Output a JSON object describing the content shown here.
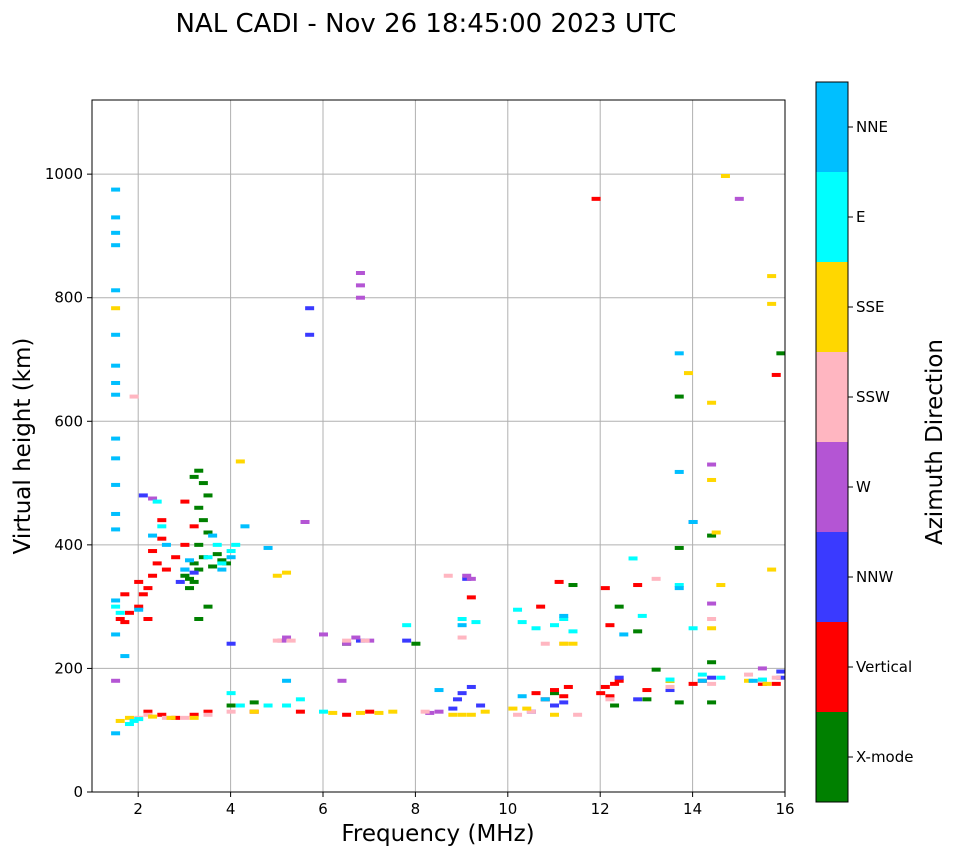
{
  "chart_data": {
    "type": "scatter",
    "title": "NAL CADI - Nov 26 18:45:00 2023 UTC",
    "xlabel": "Frequency (MHz)",
    "ylabel": "Virtual height (km)",
    "xlim": [
      1,
      16
    ],
    "ylim": [
      0,
      1120
    ],
    "xticks": [
      2,
      4,
      6,
      8,
      10,
      12,
      14,
      16
    ],
    "yticks": [
      0,
      200,
      400,
      600,
      800,
      1000
    ],
    "grid": true,
    "colorbar": {
      "label": "Azimuth Direction",
      "categories": [
        {
          "name": "X-mode",
          "color": "#008000"
        },
        {
          "name": "Vertical",
          "color": "#ff0000"
        },
        {
          "name": "NNW",
          "color": "#3a3aff"
        },
        {
          "name": "W",
          "color": "#b455d4"
        },
        {
          "name": "SSW",
          "color": "#ffb6c1"
        },
        {
          "name": "SSE",
          "color": "#ffd700"
        },
        {
          "name": "E",
          "color": "#00ffff"
        },
        {
          "name": "NNE",
          "color": "#00bfff"
        }
      ]
    },
    "series": [
      {
        "name": "X-mode",
        "points": [
          [
            3.0,
            350
          ],
          [
            3.1,
            345
          ],
          [
            3.2,
            340
          ],
          [
            3.1,
            330
          ],
          [
            3.3,
            360
          ],
          [
            3.2,
            370
          ],
          [
            3.4,
            380
          ],
          [
            3.3,
            400
          ],
          [
            3.5,
            420
          ],
          [
            3.4,
            440
          ],
          [
            3.3,
            460
          ],
          [
            3.5,
            480
          ],
          [
            3.4,
            500
          ],
          [
            3.3,
            520
          ],
          [
            3.6,
            365
          ],
          [
            3.8,
            375
          ],
          [
            3.7,
            385
          ],
          [
            3.9,
            370
          ],
          [
            3.3,
            280
          ],
          [
            3.5,
            300
          ],
          [
            3.2,
            510
          ],
          [
            6.5,
            240
          ],
          [
            8.0,
            240
          ],
          [
            11.0,
            160
          ],
          [
            11.4,
            335
          ],
          [
            12.3,
            140
          ],
          [
            12.4,
            300
          ],
          [
            12.8,
            260
          ],
          [
            13.0,
            150
          ],
          [
            13.2,
            198
          ],
          [
            13.5,
            180
          ],
          [
            13.7,
            145
          ],
          [
            13.7,
            640
          ],
          [
            13.7,
            395
          ],
          [
            14.4,
            415
          ],
          [
            14.4,
            210
          ],
          [
            14.4,
            145
          ],
          [
            15.5,
            180
          ],
          [
            15.9,
            195
          ],
          [
            15.9,
            710
          ],
          [
            4.0,
            140
          ],
          [
            4.5,
            145
          ]
        ]
      },
      {
        "name": "Vertical",
        "points": [
          [
            1.6,
            280
          ],
          [
            1.7,
            275
          ],
          [
            1.8,
            290
          ],
          [
            1.7,
            320
          ],
          [
            2.0,
            300
          ],
          [
            2.1,
            320
          ],
          [
            2.2,
            330
          ],
          [
            2.3,
            350
          ],
          [
            2.4,
            370
          ],
          [
            2.3,
            390
          ],
          [
            2.5,
            410
          ],
          [
            2.2,
            280
          ],
          [
            2.5,
            440
          ],
          [
            2.0,
            340
          ],
          [
            2.6,
            360
          ],
          [
            3.0,
            400
          ],
          [
            2.8,
            380
          ],
          [
            3.0,
            470
          ],
          [
            3.2,
            430
          ],
          [
            2.2,
            130
          ],
          [
            2.5,
            125
          ],
          [
            2.8,
            120
          ],
          [
            3.2,
            125
          ],
          [
            3.5,
            130
          ],
          [
            4.5,
            130
          ],
          [
            5.5,
            130
          ],
          [
            6.5,
            125
          ],
          [
            7.0,
            130
          ],
          [
            9.2,
            315
          ],
          [
            10.6,
            160
          ],
          [
            10.7,
            300
          ],
          [
            10.8,
            150
          ],
          [
            11.0,
            165
          ],
          [
            11.1,
            340
          ],
          [
            11.2,
            155
          ],
          [
            11.3,
            170
          ],
          [
            11.9,
            960
          ],
          [
            12.0,
            160
          ],
          [
            12.1,
            170
          ],
          [
            12.2,
            155
          ],
          [
            12.3,
            175
          ],
          [
            12.4,
            180
          ],
          [
            12.8,
            335
          ],
          [
            13.0,
            165
          ],
          [
            14.0,
            175
          ],
          [
            14.2,
            180
          ],
          [
            15.5,
            175
          ],
          [
            15.8,
            175
          ],
          [
            15.8,
            675
          ],
          [
            12.2,
            270
          ],
          [
            12.1,
            330
          ]
        ]
      },
      {
        "name": "NNW",
        "points": [
          [
            2.9,
            340
          ],
          [
            3.0,
            360
          ],
          [
            3.2,
            355
          ],
          [
            4.0,
            240
          ],
          [
            5.7,
            740
          ],
          [
            5.7,
            783
          ],
          [
            6.8,
            245
          ],
          [
            8.8,
            135
          ],
          [
            8.9,
            150
          ],
          [
            9.0,
            160
          ],
          [
            9.2,
            170
          ],
          [
            9.4,
            140
          ],
          [
            9.1,
            345
          ],
          [
            10.5,
            130
          ],
          [
            11.0,
            140
          ],
          [
            11.2,
            145
          ],
          [
            12.4,
            185
          ],
          [
            13.5,
            165
          ],
          [
            14.0,
            437
          ],
          [
            14.4,
            185
          ],
          [
            15.9,
            185
          ],
          [
            15.9,
            195
          ],
          [
            12.8,
            150
          ],
          [
            7.8,
            245
          ],
          [
            2.1,
            480
          ]
        ]
      },
      {
        "name": "W",
        "points": [
          [
            1.5,
            180
          ],
          [
            5.1,
            245
          ],
          [
            5.2,
            250
          ],
          [
            6.0,
            255
          ],
          [
            6.4,
            180
          ],
          [
            6.5,
            240
          ],
          [
            6.7,
            250
          ],
          [
            6.8,
            800
          ],
          [
            6.8,
            820
          ],
          [
            6.8,
            840
          ],
          [
            7.0,
            245
          ],
          [
            8.3,
            128
          ],
          [
            8.5,
            130
          ],
          [
            9.1,
            350
          ],
          [
            9.2,
            345
          ],
          [
            14.4,
            530
          ],
          [
            14.4,
            305
          ],
          [
            15.0,
            960
          ],
          [
            15.5,
            200
          ],
          [
            5.6,
            437
          ],
          [
            2.3,
            475
          ]
        ]
      },
      {
        "name": "SSW",
        "points": [
          [
            1.9,
            640
          ],
          [
            2.0,
            120
          ],
          [
            2.2,
            125
          ],
          [
            2.6,
            120
          ],
          [
            3.0,
            120
          ],
          [
            3.5,
            125
          ],
          [
            4.0,
            130
          ],
          [
            5.0,
            245
          ],
          [
            5.3,
            245
          ],
          [
            6.5,
            245
          ],
          [
            6.9,
            245
          ],
          [
            8.7,
            350
          ],
          [
            9.0,
            250
          ],
          [
            10.2,
            125
          ],
          [
            10.5,
            130
          ],
          [
            10.8,
            240
          ],
          [
            11.2,
            240
          ],
          [
            11.5,
            125
          ],
          [
            12.2,
            150
          ],
          [
            13.2,
            345
          ],
          [
            13.5,
            170
          ],
          [
            14.4,
            175
          ],
          [
            14.4,
            280
          ],
          [
            15.2,
            190
          ],
          [
            15.5,
            180
          ],
          [
            15.8,
            185
          ],
          [
            8.2,
            130
          ]
        ]
      },
      {
        "name": "SSE",
        "points": [
          [
            1.5,
            783
          ],
          [
            1.6,
            115
          ],
          [
            1.8,
            120
          ],
          [
            2.3,
            122
          ],
          [
            2.7,
            120
          ],
          [
            3.2,
            120
          ],
          [
            4.2,
            535
          ],
          [
            4.5,
            130
          ],
          [
            5.0,
            350
          ],
          [
            5.2,
            355
          ],
          [
            6.2,
            128
          ],
          [
            6.8,
            128
          ],
          [
            7.2,
            128
          ],
          [
            7.5,
            130
          ],
          [
            8.8,
            125
          ],
          [
            9.0,
            125
          ],
          [
            9.2,
            125
          ],
          [
            9.5,
            130
          ],
          [
            10.1,
            135
          ],
          [
            10.4,
            135
          ],
          [
            11.0,
            125
          ],
          [
            11.2,
            240
          ],
          [
            11.4,
            240
          ],
          [
            13.5,
            180
          ],
          [
            13.9,
            678
          ],
          [
            14.4,
            630
          ],
          [
            14.4,
            505
          ],
          [
            14.4,
            265
          ],
          [
            14.5,
            420
          ],
          [
            14.6,
            335
          ],
          [
            14.7,
            997
          ],
          [
            15.7,
            835
          ],
          [
            15.7,
            790
          ],
          [
            15.7,
            360
          ],
          [
            15.2,
            180
          ],
          [
            15.6,
            175
          ]
        ]
      },
      {
        "name": "E",
        "points": [
          [
            1.5,
            300
          ],
          [
            1.6,
            290
          ],
          [
            1.8,
            110
          ],
          [
            1.9,
            115
          ],
          [
            2.0,
            118
          ],
          [
            2.4,
            470
          ],
          [
            2.5,
            430
          ],
          [
            3.5,
            380
          ],
          [
            3.7,
            400
          ],
          [
            3.8,
            370
          ],
          [
            4.0,
            390
          ],
          [
            4.1,
            400
          ],
          [
            4.2,
            140
          ],
          [
            4.8,
            140
          ],
          [
            5.2,
            140
          ],
          [
            5.5,
            150
          ],
          [
            6.0,
            130
          ],
          [
            7.8,
            270
          ],
          [
            9.0,
            280
          ],
          [
            9.3,
            275
          ],
          [
            10.2,
            295
          ],
          [
            10.3,
            275
          ],
          [
            10.6,
            265
          ],
          [
            11.0,
            270
          ],
          [
            11.2,
            280
          ],
          [
            11.4,
            260
          ],
          [
            12.7,
            378
          ],
          [
            12.9,
            285
          ],
          [
            13.5,
            182
          ],
          [
            13.7,
            335
          ],
          [
            14.0,
            265
          ],
          [
            14.2,
            190
          ],
          [
            14.6,
            185
          ],
          [
            15.5,
            182
          ],
          [
            4.0,
            160
          ]
        ]
      },
      {
        "name": "NNE",
        "points": [
          [
            1.5,
            975
          ],
          [
            1.5,
            930
          ],
          [
            1.5,
            905
          ],
          [
            1.5,
            885
          ],
          [
            1.5,
            812
          ],
          [
            1.5,
            740
          ],
          [
            1.5,
            690
          ],
          [
            1.5,
            662
          ],
          [
            1.5,
            643
          ],
          [
            1.5,
            572
          ],
          [
            1.5,
            540
          ],
          [
            1.5,
            497
          ],
          [
            1.5,
            450
          ],
          [
            1.5,
            425
          ],
          [
            1.5,
            255
          ],
          [
            1.5,
            310
          ],
          [
            1.5,
            95
          ],
          [
            1.7,
            220
          ],
          [
            2.0,
            295
          ],
          [
            2.3,
            415
          ],
          [
            2.6,
            400
          ],
          [
            3.0,
            360
          ],
          [
            3.1,
            375
          ],
          [
            3.6,
            415
          ],
          [
            3.8,
            360
          ],
          [
            4.0,
            380
          ],
          [
            4.3,
            430
          ],
          [
            4.8,
            395
          ],
          [
            5.2,
            180
          ],
          [
            9.0,
            270
          ],
          [
            8.5,
            165
          ],
          [
            10.3,
            155
          ],
          [
            10.8,
            150
          ],
          [
            11.2,
            285
          ],
          [
            13.7,
            710
          ],
          [
            13.7,
            518
          ],
          [
            13.7,
            330
          ],
          [
            14.0,
            437
          ],
          [
            14.2,
            180
          ],
          [
            15.3,
            180
          ],
          [
            12.5,
            255
          ]
        ]
      }
    ]
  }
}
